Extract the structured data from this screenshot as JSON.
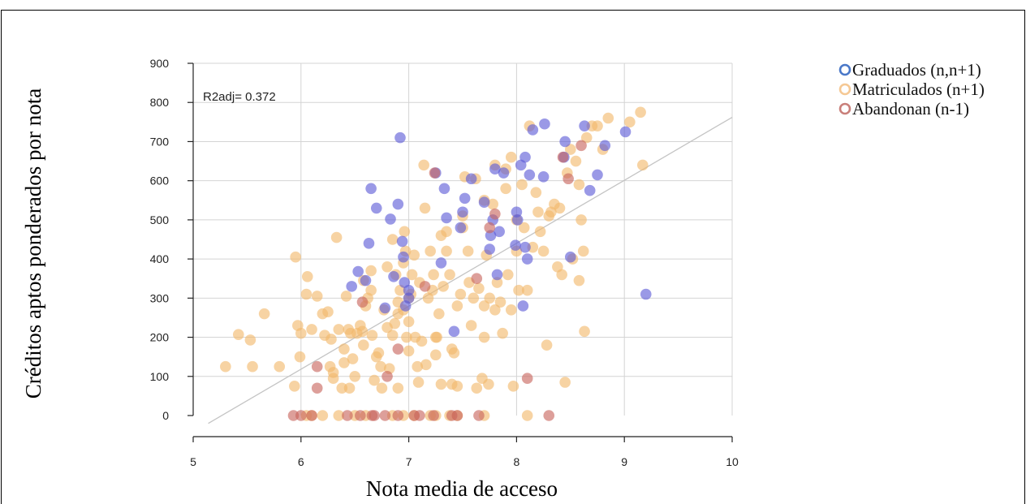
{
  "chart_data": {
    "type": "scatter",
    "xlabel": "Nota media de acceso",
    "ylabel": "Créditos aptos ponderados por nota",
    "xlim": [
      5,
      10
    ],
    "ylim": [
      0,
      900
    ],
    "xticks": [
      5,
      6,
      7,
      8,
      9,
      10
    ],
    "yticks": [
      0,
      100,
      200,
      300,
      400,
      500,
      600,
      700,
      800,
      900
    ],
    "grid": true,
    "legend_position": "top-right",
    "annotation": "R2adj= 0.372",
    "regression_line": {
      "x": [
        5.14,
        10.0
      ],
      "y": [
        -20,
        762
      ]
    },
    "series": [
      {
        "name": "Matriculados (n+1)",
        "color": "#f2b86a",
        "points": [
          [
            5.3,
            125
          ],
          [
            5.42,
            207
          ],
          [
            5.53,
            193
          ],
          [
            5.55,
            125
          ],
          [
            5.66,
            260
          ],
          [
            5.8,
            125
          ],
          [
            5.94,
            75
          ],
          [
            5.95,
            405
          ],
          [
            5.97,
            230
          ],
          [
            5.99,
            150
          ],
          [
            6.0,
            210
          ],
          [
            6.05,
            310
          ],
          [
            6.06,
            355
          ],
          [
            6.1,
            220
          ],
          [
            6.2,
            260
          ],
          [
            6.22,
            205
          ],
          [
            6.25,
            265
          ],
          [
            6.27,
            125
          ],
          [
            6.28,
            195
          ],
          [
            6.3,
            110
          ],
          [
            6.33,
            455
          ],
          [
            6.35,
            220
          ],
          [
            6.38,
            70
          ],
          [
            6.4,
            135
          ],
          [
            6.42,
            305
          ],
          [
            6.44,
            220
          ],
          [
            6.46,
            210
          ],
          [
            6.48,
            145
          ],
          [
            6.5,
            100
          ],
          [
            6.52,
            210
          ],
          [
            6.55,
            230
          ],
          [
            6.57,
            215
          ],
          [
            6.58,
            345
          ],
          [
            6.6,
            280
          ],
          [
            6.62,
            300
          ],
          [
            6.65,
            320
          ],
          [
            6.65,
            370
          ],
          [
            6.66,
            205
          ],
          [
            6.68,
            90
          ],
          [
            6.7,
            150
          ],
          [
            6.72,
            160
          ],
          [
            6.74,
            125
          ],
          [
            6.75,
            70
          ],
          [
            6.77,
            270
          ],
          [
            6.8,
            380
          ],
          [
            6.8,
            225
          ],
          [
            6.82,
            120
          ],
          [
            6.85,
            450
          ],
          [
            6.87,
            235
          ],
          [
            6.88,
            360
          ],
          [
            6.9,
            70
          ],
          [
            6.9,
            290
          ],
          [
            6.92,
            320
          ],
          [
            6.95,
            270
          ],
          [
            6.95,
            390
          ],
          [
            6.96,
            470
          ],
          [
            6.97,
            420
          ],
          [
            6.98,
            200
          ],
          [
            7.0,
            165
          ],
          [
            7.0,
            300
          ],
          [
            7.02,
            310
          ],
          [
            7.03,
            360
          ],
          [
            7.05,
            410
          ],
          [
            7.06,
            200
          ],
          [
            7.08,
            125
          ],
          [
            7.09,
            85
          ],
          [
            7.1,
            340
          ],
          [
            7.12,
            190
          ],
          [
            7.14,
            640
          ],
          [
            7.15,
            530
          ],
          [
            7.16,
            130
          ],
          [
            7.18,
            300
          ],
          [
            7.2,
            420
          ],
          [
            7.22,
            320
          ],
          [
            7.23,
            360
          ],
          [
            7.25,
            155
          ],
          [
            7.26,
            200
          ],
          [
            7.28,
            260
          ],
          [
            7.3,
            80
          ],
          [
            7.3,
            460
          ],
          [
            7.32,
            330
          ],
          [
            7.35,
            420
          ],
          [
            7.38,
            360
          ],
          [
            7.4,
            80
          ],
          [
            7.4,
            170
          ],
          [
            7.42,
            160
          ],
          [
            7.45,
            280
          ],
          [
            7.48,
            310
          ],
          [
            7.5,
            480
          ],
          [
            7.52,
            610
          ],
          [
            7.55,
            420
          ],
          [
            7.56,
            340
          ],
          [
            7.58,
            230
          ],
          [
            7.6,
            300
          ],
          [
            7.62,
            605
          ],
          [
            7.65,
            325
          ],
          [
            7.68,
            95
          ],
          [
            7.7,
            550
          ],
          [
            7.7,
            280
          ],
          [
            7.72,
            410
          ],
          [
            7.74,
            80
          ],
          [
            7.75,
            300
          ],
          [
            7.78,
            540
          ],
          [
            7.8,
            640
          ],
          [
            7.8,
            270
          ],
          [
            7.82,
            340
          ],
          [
            7.85,
            290
          ],
          [
            7.87,
            210
          ],
          [
            7.9,
            630
          ],
          [
            7.9,
            580
          ],
          [
            7.92,
            360
          ],
          [
            7.95,
            270
          ],
          [
            7.97,
            75
          ],
          [
            8.0,
            500
          ],
          [
            8.0,
            420
          ],
          [
            8.02,
            320
          ],
          [
            8.05,
            590
          ],
          [
            8.07,
            480
          ],
          [
            8.1,
            320
          ],
          [
            8.12,
            740
          ],
          [
            8.15,
            430
          ],
          [
            8.18,
            570
          ],
          [
            8.2,
            520
          ],
          [
            8.22,
            470
          ],
          [
            8.25,
            420
          ],
          [
            8.28,
            180
          ],
          [
            8.3,
            510
          ],
          [
            8.32,
            520
          ],
          [
            8.35,
            540
          ],
          [
            8.38,
            380
          ],
          [
            8.4,
            530
          ],
          [
            8.42,
            360
          ],
          [
            8.45,
            85
          ],
          [
            8.47,
            620
          ],
          [
            8.5,
            680
          ],
          [
            8.52,
            400
          ],
          [
            8.55,
            650
          ],
          [
            8.58,
            590
          ],
          [
            8.6,
            500
          ],
          [
            8.62,
            420
          ],
          [
            8.63,
            215
          ],
          [
            8.65,
            710
          ],
          [
            8.7,
            740
          ],
          [
            8.75,
            740
          ],
          [
            8.8,
            680
          ],
          [
            8.85,
            760
          ],
          [
            9.05,
            750
          ],
          [
            9.15,
            775
          ],
          [
            9.17,
            640
          ],
          [
            7.5,
            510
          ],
          [
            6.9,
            260
          ],
          [
            7.0,
            240
          ],
          [
            7.35,
            470
          ],
          [
            6.58,
            180
          ],
          [
            6.4,
            170
          ],
          [
            6.3,
            95
          ],
          [
            7.63,
            70
          ],
          [
            7.45,
            75
          ],
          [
            8.58,
            345
          ],
          [
            6.15,
            305
          ],
          [
            7.25,
            200
          ],
          [
            6.85,
            205
          ],
          [
            7.7,
            200
          ],
          [
            7.95,
            660
          ],
          [
            6.45,
            70
          ],
          [
            6.1,
            0
          ],
          [
            6.2,
            0
          ],
          [
            6.35,
            0
          ],
          [
            6.5,
            0
          ],
          [
            6.6,
            0
          ],
          [
            6.85,
            0
          ],
          [
            6.95,
            0
          ],
          [
            7.05,
            0
          ],
          [
            7.2,
            0
          ],
          [
            7.25,
            0
          ],
          [
            7.45,
            0
          ],
          [
            7.7,
            0
          ],
          [
            8.1,
            0
          ],
          [
            6.05,
            0
          ],
          [
            7.38,
            0
          ]
        ]
      },
      {
        "name": "Graduados (n,n+1)",
        "color": "#5c5ad6",
        "points": [
          [
            6.47,
            330
          ],
          [
            6.53,
            368
          ],
          [
            6.6,
            345
          ],
          [
            6.63,
            440
          ],
          [
            6.65,
            580
          ],
          [
            6.7,
            530
          ],
          [
            6.83,
            502
          ],
          [
            6.86,
            355
          ],
          [
            6.9,
            540
          ],
          [
            6.92,
            710
          ],
          [
            6.94,
            445
          ],
          [
            6.95,
            405
          ],
          [
            6.96,
            340
          ],
          [
            7.0,
            320
          ],
          [
            7.0,
            300
          ],
          [
            6.97,
            280
          ],
          [
            6.78,
            275
          ],
          [
            7.25,
            620
          ],
          [
            7.3,
            390
          ],
          [
            7.33,
            580
          ],
          [
            7.35,
            505
          ],
          [
            7.42,
            215
          ],
          [
            7.48,
            480
          ],
          [
            7.5,
            520
          ],
          [
            7.52,
            555
          ],
          [
            7.58,
            605
          ],
          [
            7.7,
            545
          ],
          [
            7.75,
            425
          ],
          [
            7.76,
            460
          ],
          [
            7.78,
            500
          ],
          [
            7.8,
            630
          ],
          [
            7.82,
            360
          ],
          [
            7.84,
            470
          ],
          [
            7.88,
            620
          ],
          [
            7.99,
            435
          ],
          [
            8.0,
            520
          ],
          [
            8.01,
            500
          ],
          [
            8.04,
            640
          ],
          [
            8.06,
            280
          ],
          [
            8.08,
            660
          ],
          [
            8.08,
            430
          ],
          [
            8.1,
            400
          ],
          [
            8.12,
            615
          ],
          [
            8.15,
            730
          ],
          [
            8.25,
            610
          ],
          [
            8.26,
            745
          ],
          [
            8.45,
            700
          ],
          [
            8.5,
            405
          ],
          [
            8.63,
            740
          ],
          [
            8.68,
            575
          ],
          [
            8.75,
            615
          ],
          [
            8.82,
            690
          ],
          [
            9.01,
            725
          ],
          [
            9.2,
            310
          ],
          [
            8.44,
            660
          ]
        ]
      },
      {
        "name": "Abandonan (n-1)",
        "color": "#c8645c",
        "points": [
          [
            5.93,
            0
          ],
          [
            6.0,
            0
          ],
          [
            6.1,
            0
          ],
          [
            6.15,
            70
          ],
          [
            6.15,
            125
          ],
          [
            6.43,
            0
          ],
          [
            6.55,
            0
          ],
          [
            6.57,
            290
          ],
          [
            6.66,
            0
          ],
          [
            6.68,
            0
          ],
          [
            6.78,
            0
          ],
          [
            6.8,
            100
          ],
          [
            6.9,
            170
          ],
          [
            6.9,
            0
          ],
          [
            7.1,
            0
          ],
          [
            7.15,
            330
          ],
          [
            7.23,
            0
          ],
          [
            7.24,
            620
          ],
          [
            7.4,
            0
          ],
          [
            7.45,
            0
          ],
          [
            7.63,
            350
          ],
          [
            7.65,
            0
          ],
          [
            7.75,
            480
          ],
          [
            7.8,
            515
          ],
          [
            8.1,
            95
          ],
          [
            8.3,
            0
          ],
          [
            8.43,
            660
          ],
          [
            8.48,
            605
          ],
          [
            8.6,
            690
          ],
          [
            7.05,
            0
          ]
        ]
      }
    ]
  }
}
